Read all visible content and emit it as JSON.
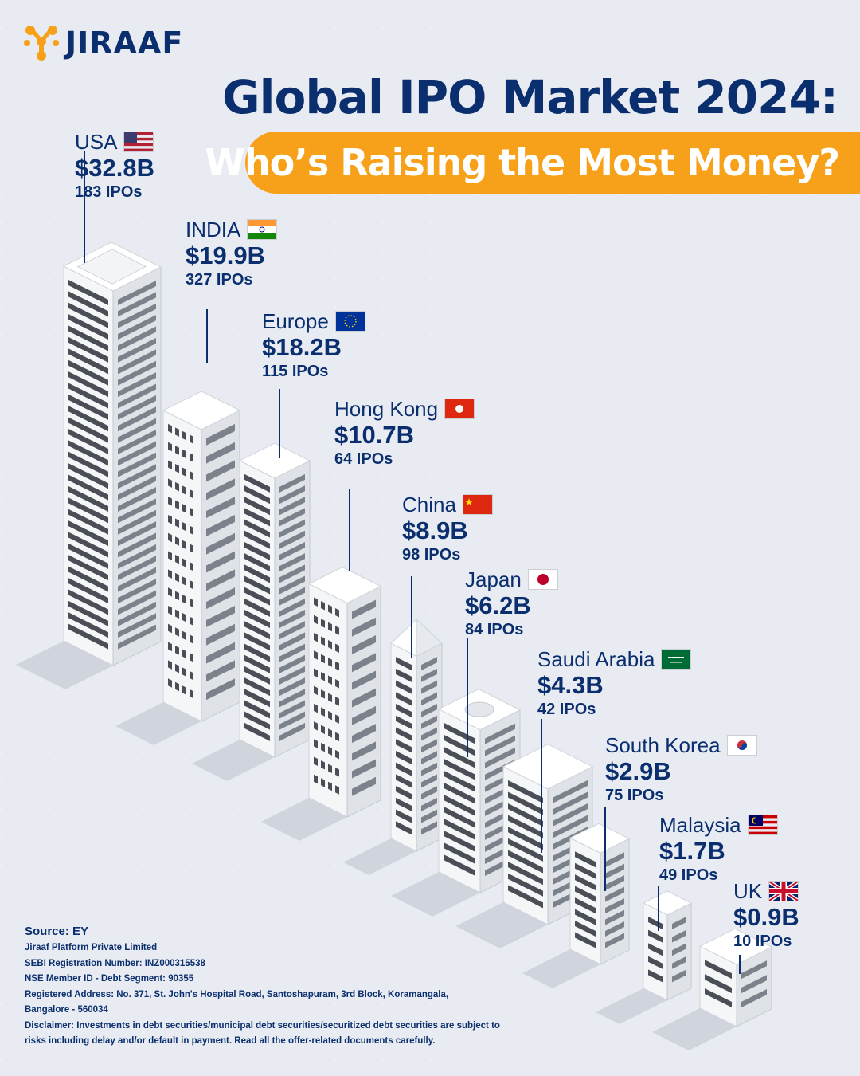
{
  "brand": {
    "name": "JIRAAF"
  },
  "header": {
    "title": "Global IPO Market 2024:",
    "subtitle": "Who’s Raising the Most Money?"
  },
  "chart_data": {
    "type": "bar",
    "title": "Global IPO Market 2024:",
    "subtitle": "Who’s Raising the Most Money?",
    "categories": [
      "USA",
      "INDIA",
      "Europe",
      "Hong Kong",
      "China",
      "Japan",
      "Saudi Arabia",
      "South Korea",
      "Malaysia",
      "UK"
    ],
    "series": [
      {
        "values": [
          32.8,
          19.9,
          18.2,
          10.7,
          8.9,
          6.2,
          4.3,
          2.9,
          1.7,
          0.9
        ]
      },
      {
        "values": [
          183,
          327,
          115,
          64,
          98,
          84,
          42,
          75,
          49,
          10
        ]
      }
    ],
    "amount_labels": [
      "$32.8B",
      "$19.9B",
      "$18.2B",
      "$10.7B",
      "$8.9B",
      "$6.2B",
      "$4.3B",
      "$2.9B",
      "$1.7B",
      "$0.9B"
    ],
    "ipo_labels": [
      "183 IPOs",
      "327 IPOs",
      "115 IPOs",
      "64 IPOs",
      "98 IPOs",
      "84 IPOs",
      "42 IPOs",
      "75 IPOs",
      "49 IPOs",
      "10 IPOs"
    ],
    "flags": [
      "usa-flag",
      "india-flag",
      "eu-flag",
      "hong-kong-flag",
      "china-flag",
      "japan-flag",
      "saudi-arabia-flag",
      "south-korea-flag",
      "malaysia-flag",
      "uk-flag"
    ]
  },
  "footer": {
    "source": "Source: EY",
    "lines": [
      "Jiraaf Platform Private Limited",
      "SEBI Registration Number: INZ000315538",
      "NSE Member ID - Debt Segment: 90355",
      "Registered Address: No. 371, St. John's Hospital Road, Santoshapuram, 3rd Block, Koramangala,",
      "Bangalore - 560034",
      "Disclaimer: Investments in debt securities/municipal debt securities/securitized debt securities are subject to",
      "risks including delay and/or default in payment. Read all the offer-related documents carefully."
    ]
  },
  "colors": {
    "navy": "#0b2f6e",
    "orange": "#f7a11a",
    "background": "#e8ecf2"
  }
}
